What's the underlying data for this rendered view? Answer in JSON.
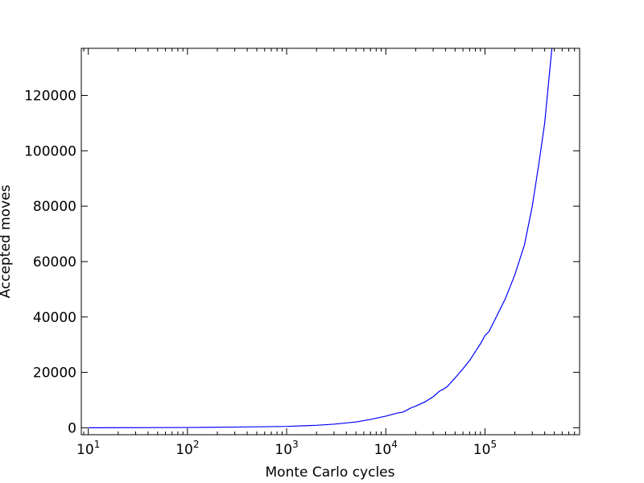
{
  "chart_data": {
    "type": "line",
    "xlabel": "Monte Carlo cycles",
    "ylabel": "Accepted moves",
    "xscale": "log",
    "xlim": [
      8.5,
      900000
    ],
    "ylim": [
      -2500,
      137000
    ],
    "x_ticks": [
      {
        "value": 10,
        "base": "10",
        "exp": "1"
      },
      {
        "value": 100,
        "base": "10",
        "exp": "2"
      },
      {
        "value": 1000,
        "base": "10",
        "exp": "3"
      },
      {
        "value": 10000,
        "base": "10",
        "exp": "4"
      },
      {
        "value": 100000,
        "base": "10",
        "exp": "5"
      }
    ],
    "y_ticks": [
      {
        "value": 0,
        "label": "0"
      },
      {
        "value": 20000,
        "label": "20000"
      },
      {
        "value": 40000,
        "label": "40000"
      },
      {
        "value": 60000,
        "label": "60000"
      },
      {
        "value": 80000,
        "label": "80000"
      },
      {
        "value": 100000,
        "label": "100000"
      },
      {
        "value": 120000,
        "label": "120000"
      }
    ],
    "grid": false,
    "colors": {
      "line": "#0000ff",
      "axes": "#000000"
    },
    "series": [
      {
        "x": [
          10,
          100,
          300,
          1000,
          2000,
          3000,
          5000,
          7000,
          10000,
          13000,
          15000,
          18000,
          20000,
          25000,
          30000,
          35000,
          38000,
          42000,
          50000,
          60000,
          70000,
          80000,
          90000,
          100000,
          110000,
          130000,
          160000,
          200000,
          250000,
          300000,
          350000,
          400000,
          470000,
          520000
        ],
        "y": [
          0,
          100,
          250,
          500,
          900,
          1300,
          2100,
          3000,
          4200,
          5300,
          5700,
          7200,
          7800,
          9400,
          11200,
          13300,
          13900,
          15000,
          18000,
          21300,
          24300,
          27500,
          30300,
          33300,
          34800,
          40000,
          46500,
          55200,
          66000,
          80000,
          95500,
          110000,
          136000,
          150000
        ]
      }
    ]
  }
}
